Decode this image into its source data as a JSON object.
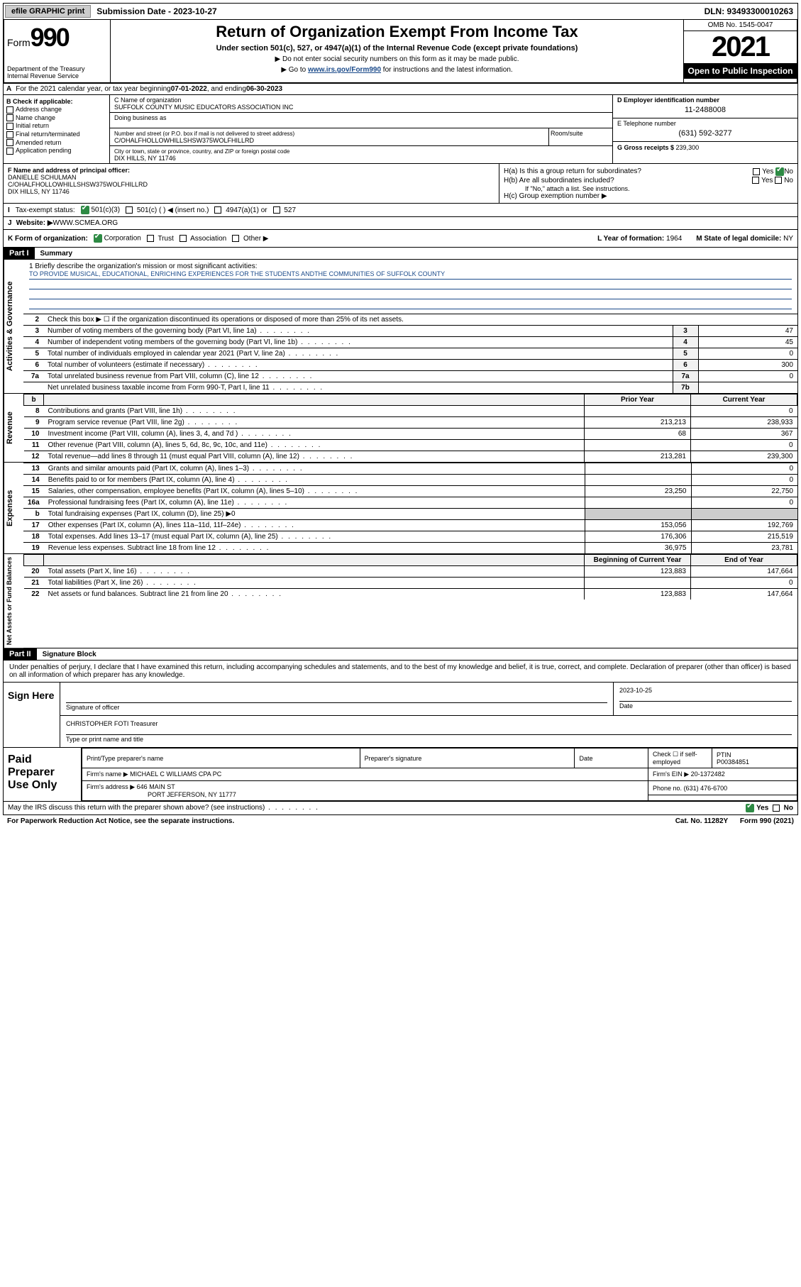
{
  "topbar": {
    "efile": "efile GRAPHIC print",
    "subdate_label": "Submission Date - ",
    "subdate": "2023-10-27",
    "dln": "DLN: 93493300010263"
  },
  "header": {
    "form": "Form",
    "formno": "990",
    "dept": "Department of the Treasury\nInternal Revenue Service",
    "title": "Return of Organization Exempt From Income Tax",
    "sub": "Under section 501(c), 527, or 4947(a)(1) of the Internal Revenue Code (except private foundations)",
    "note1": "▶ Do not enter social security numbers on this form as it may be made public.",
    "note2_pre": "▶ Go to ",
    "note2_link": "www.irs.gov/Form990",
    "note2_post": " for instructions and the latest information.",
    "omb": "OMB No. 1545-0047",
    "year": "2021",
    "open": "Open to Public Inspection"
  },
  "rowA": {
    "label": "A",
    "text": "For the 2021 calendar year, or tax year beginning ",
    "begin": "07-01-2022",
    "mid": " , and ending ",
    "end": "06-30-2023"
  },
  "colB": {
    "label": "B Check if applicable:",
    "opts": [
      "Address change",
      "Name change",
      "Initial return",
      "Final return/terminated",
      "Amended return",
      "Application pending"
    ]
  },
  "colC": {
    "name_label": "C Name of organization",
    "name": "SUFFOLK COUNTY MUSIC EDUCATORS ASSOCIATION INC",
    "dba_label": "Doing business as",
    "addr_label": "Number and street (or P.O. box if mail is not delivered to street address)",
    "addr": "C/OHALFHOLLOWHILLSHSW375WOLFHILLRD",
    "room_label": "Room/suite",
    "city_label": "City or town, state or province, country, and ZIP or foreign postal code",
    "city": "DIX HILLS, NY  11746"
  },
  "colD": {
    "ein_label": "D Employer identification number",
    "ein": "11-2488008",
    "phone_label": "E Telephone number",
    "phone": "(631) 592-3277",
    "gross_label": "G Gross receipts $ ",
    "gross": "239,300"
  },
  "colF": {
    "label": "F  Name and address of principal officer:",
    "name": "DANIELLE SCHULMAN",
    "addr": "C/OHALFHOLLOWHILLSHSW375WOLFHILLRD",
    "city": "DIX HILLS, NY  11746"
  },
  "colH": {
    "a_label": "H(a)  Is this a group return for subordinates?",
    "a_yes": "Yes",
    "a_no": "No",
    "b_label": "H(b)  Are all subordinates included?",
    "b_note": "If \"No,\" attach a list. See instructions.",
    "c_label": "H(c)  Group exemption number ▶"
  },
  "rowI": {
    "label": "I",
    "text": "Tax-exempt status:",
    "o1": "501(c)(3)",
    "o2": "501(c) (   ) ◀ (insert no.)",
    "o3": "4947(a)(1) or",
    "o4": "527"
  },
  "rowJ": {
    "label": "J",
    "text": "Website: ▶ ",
    "val": "WWW.SCMEA.ORG"
  },
  "rowK": {
    "label": "K Form of organization:",
    "o1": "Corporation",
    "o2": "Trust",
    "o3": "Association",
    "o4": "Other ▶",
    "l": "L Year of formation: ",
    "lval": "1964",
    "m": "M State of legal domicile: ",
    "mval": "NY"
  },
  "part1": {
    "hdr": "Part I",
    "title": "Summary"
  },
  "mission": {
    "label": "1  Briefly describe the organization's mission or most significant activities:",
    "text": "TO PROVIDE MUSICAL, EDUCATIONAL, ENRICHING EXPERIENCES FOR THE STUDENTS ANDTHE COMMUNITIES OF SUFFOLK COUNTY"
  },
  "gov_rows": [
    {
      "ln": "2",
      "desc": "Check this box ▶ ☐  if the organization discontinued its operations or disposed of more than 25% of its net assets.",
      "num": "",
      "val": ""
    },
    {
      "ln": "3",
      "desc": "Number of voting members of the governing body (Part VI, line 1a)",
      "num": "3",
      "val": "47"
    },
    {
      "ln": "4",
      "desc": "Number of independent voting members of the governing body (Part VI, line 1b)",
      "num": "4",
      "val": "45"
    },
    {
      "ln": "5",
      "desc": "Total number of individuals employed in calendar year 2021 (Part V, line 2a)",
      "num": "5",
      "val": "0"
    },
    {
      "ln": "6",
      "desc": "Total number of volunteers (estimate if necessary)",
      "num": "6",
      "val": "300"
    },
    {
      "ln": "7a",
      "desc": "Total unrelated business revenue from Part VIII, column (C), line 12",
      "num": "7a",
      "val": "0"
    },
    {
      "ln": "",
      "desc": "Net unrelated business taxable income from Form 990-T, Part I, line 11",
      "num": "7b",
      "val": ""
    }
  ],
  "rev_hdr": {
    "b": "b",
    "prior": "Prior Year",
    "curr": "Current Year"
  },
  "rev_rows": [
    {
      "ln": "8",
      "desc": "Contributions and grants (Part VIII, line 1h)",
      "p": "",
      "c": "0"
    },
    {
      "ln": "9",
      "desc": "Program service revenue (Part VIII, line 2g)",
      "p": "213,213",
      "c": "238,933"
    },
    {
      "ln": "10",
      "desc": "Investment income (Part VIII, column (A), lines 3, 4, and 7d )",
      "p": "68",
      "c": "367"
    },
    {
      "ln": "11",
      "desc": "Other revenue (Part VIII, column (A), lines 5, 6d, 8c, 9c, 10c, and 11e)",
      "p": "",
      "c": "0"
    },
    {
      "ln": "12",
      "desc": "Total revenue—add lines 8 through 11 (must equal Part VIII, column (A), line 12)",
      "p": "213,281",
      "c": "239,300"
    }
  ],
  "exp_rows": [
    {
      "ln": "13",
      "desc": "Grants and similar amounts paid (Part IX, column (A), lines 1–3)",
      "p": "",
      "c": "0"
    },
    {
      "ln": "14",
      "desc": "Benefits paid to or for members (Part IX, column (A), line 4)",
      "p": "",
      "c": "0"
    },
    {
      "ln": "15",
      "desc": "Salaries, other compensation, employee benefits (Part IX, column (A), lines 5–10)",
      "p": "23,250",
      "c": "22,750"
    },
    {
      "ln": "16a",
      "desc": "Professional fundraising fees (Part IX, column (A), line 11e)",
      "p": "",
      "c": "0"
    },
    {
      "ln": "b",
      "desc": "Total fundraising expenses (Part IX, column (D), line 25) ▶0",
      "p": "—",
      "c": "—"
    },
    {
      "ln": "17",
      "desc": "Other expenses (Part IX, column (A), lines 11a–11d, 11f–24e)",
      "p": "153,056",
      "c": "192,769"
    },
    {
      "ln": "18",
      "desc": "Total expenses. Add lines 13–17 (must equal Part IX, column (A), line 25)",
      "p": "176,306",
      "c": "215,519"
    },
    {
      "ln": "19",
      "desc": "Revenue less expenses. Subtract line 18 from line 12",
      "p": "36,975",
      "c": "23,781"
    }
  ],
  "net_hdr": {
    "b": "Beginning of Current Year",
    "e": "End of Year"
  },
  "net_rows": [
    {
      "ln": "20",
      "desc": "Total assets (Part X, line 16)",
      "p": "123,883",
      "c": "147,664"
    },
    {
      "ln": "21",
      "desc": "Total liabilities (Part X, line 26)",
      "p": "",
      "c": "0"
    },
    {
      "ln": "22",
      "desc": "Net assets or fund balances. Subtract line 21 from line 20",
      "p": "123,883",
      "c": "147,664"
    }
  ],
  "part2": {
    "hdr": "Part II",
    "title": "Signature Block"
  },
  "decl": "Under penalties of perjury, I declare that I have examined this return, including accompanying schedules and statements, and to the best of my knowledge and belief, it is true, correct, and complete. Declaration of preparer (other than officer) is based on all information of which preparer has any knowledge.",
  "sign": {
    "here": "Sign Here",
    "sig_label": "Signature of officer",
    "date_label": "Date",
    "date": "2023-10-25",
    "name": "CHRISTOPHER FOTI Treasurer",
    "name_label": "Type or print name and title"
  },
  "paid": {
    "label": "Paid Preparer Use Only",
    "h1": "Print/Type preparer's name",
    "h2": "Preparer's signature",
    "h3": "Date",
    "h4a": "Check ☐ if self-employed",
    "h4b": "PTIN",
    "ptin": "P00384851",
    "firm_label": "Firm's name     ▶",
    "firm": "MICHAEL C WILLIAMS CPA PC",
    "ein_label": "Firm's EIN ▶",
    "ein": "20-1372482",
    "addr_label": "Firm's address ▶",
    "addr1": "646 MAIN ST",
    "addr2": "PORT JEFFERSON, NY  11777",
    "phone_label": "Phone no.",
    "phone": "(631) 476-6700"
  },
  "foot": {
    "q": "May the IRS discuss this return with the preparer shown above? (see instructions)",
    "yes": "Yes",
    "no": "No",
    "pra": "For Paperwork Reduction Act Notice, see the separate instructions.",
    "cat": "Cat. No. 11282Y",
    "form": "Form 990 (2021)"
  },
  "vtabs": {
    "gov": "Activities & Governance",
    "rev": "Revenue",
    "exp": "Expenses",
    "net": "Net Assets or Fund Balances"
  }
}
